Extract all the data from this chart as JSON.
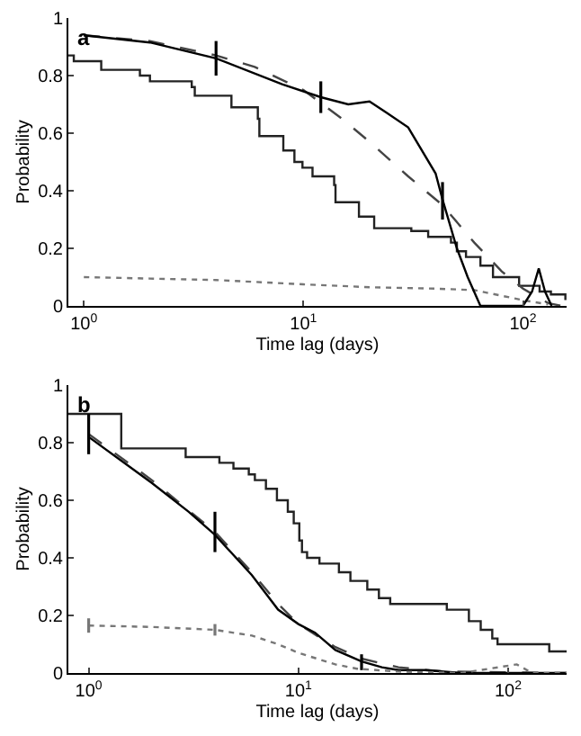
{
  "chart_data": [
    {
      "type": "line",
      "title": "a",
      "xlabel": "Time lag (days)",
      "ylabel": "Probability",
      "log": "x",
      "grid": false,
      "marker": "none",
      "xlim": [
        0.85,
        158
      ],
      "xticks": [
        {
          "value": 1,
          "label": "10$^{0}$"
        },
        {
          "value": 10,
          "label": "10$^{1}$"
        },
        {
          "value": 100,
          "label": "10$^{2}$"
        }
      ],
      "ylim": [
        0,
        1
      ],
      "yticks": [
        0,
        0.2,
        0.4,
        0.6,
        0.8,
        1
      ],
      "series": [
        {
          "type": "step",
          "color": "#222222",
          "line_style": "solid",
          "x": [
            0.85,
            0.9,
            1.2,
            1.8,
            2.0,
            3.1,
            3.2,
            4.7,
            6.2,
            6.3,
            8.1,
            9.1,
            9.9,
            11,
            13.8,
            14,
            17.9,
            21,
            31,
            37,
            47,
            50,
            55,
            64,
            73,
            96,
            119,
            134,
            156
          ],
          "values": [
            0.87,
            0.85,
            0.82,
            0.8,
            0.78,
            0.76,
            0.73,
            0.69,
            0.65,
            0.59,
            0.54,
            0.5,
            0.48,
            0.45,
            0.42,
            0.36,
            0.31,
            0.27,
            0.26,
            0.24,
            0.22,
            0.19,
            0.17,
            0.14,
            0.1,
            0.07,
            0.05,
            0.04,
            0.02
          ]
        },
        {
          "type": "line",
          "color": "#000000",
          "line_style": "solid",
          "x": [
            1,
            2,
            4,
            8,
            12,
            16,
            20,
            24,
            30,
            40,
            43,
            50,
            56,
            64,
            100,
            110,
            118,
            126,
            135
          ],
          "values": [
            0.94,
            0.915,
            0.86,
            0.77,
            0.725,
            0.7,
            0.71,
            0.67,
            0.62,
            0.46,
            0.37,
            0.2,
            0.1,
            0,
            0,
            0.05,
            0.13,
            0.05,
            0
          ],
          "errors": [
            null,
            null,
            [
              0.8,
              0.92
            ],
            null,
            [
              0.67,
              0.78
            ],
            null,
            null,
            null,
            null,
            null,
            [
              0.3,
              0.43
            ],
            null,
            null,
            null,
            null,
            null,
            null,
            null,
            null
          ]
        },
        {
          "type": "line",
          "color": "#444444",
          "line_style": "dashed",
          "x": [
            1,
            2,
            4,
            6,
            10,
            15,
            20,
            30,
            43,
            60,
            80,
            100,
            130,
            150
          ],
          "values": [
            0.94,
            0.92,
            0.87,
            0.83,
            0.75,
            0.65,
            0.57,
            0.45,
            0.35,
            0.22,
            0.12,
            0.06,
            0.01,
            0
          ]
        },
        {
          "type": "line",
          "color": "#777777",
          "line_style": "dotted",
          "x": [
            1,
            2,
            4,
            10,
            20,
            40,
            60,
            100,
            130
          ],
          "values": [
            0.1,
            0.095,
            0.09,
            0.075,
            0.065,
            0.06,
            0.055,
            0.02,
            0.005
          ]
        }
      ]
    },
    {
      "type": "line",
      "title": "b",
      "xlabel": "Time lag (days)",
      "ylabel": "Probability",
      "log": "x",
      "grid": false,
      "marker": "none",
      "xlim": [
        0.8,
        190
      ],
      "xticks": [
        {
          "value": 1,
          "label": "10$^{0}$"
        },
        {
          "value": 10,
          "label": "10$^{1}$"
        },
        {
          "value": 100,
          "label": "10$^{2}$"
        }
      ],
      "ylim": [
        0,
        1
      ],
      "yticks": [
        0,
        0.2,
        0.4,
        0.6,
        0.8,
        1
      ],
      "series": [
        {
          "type": "step",
          "color": "#222222",
          "line_style": "solid",
          "x": [
            0.8,
            1.43,
            2.9,
            4.2,
            4.9,
            5.8,
            6.2,
            7,
            7.9,
            8.9,
            9.5,
            10.1,
            10.4,
            11,
            12.6,
            15.6,
            17.7,
            21.3,
            24.2,
            27.4,
            51,
            65,
            74,
            84,
            89,
            157,
            190
          ],
          "values": [
            0.9,
            0.78,
            0.75,
            0.73,
            0.71,
            0.69,
            0.67,
            0.64,
            0.6,
            0.56,
            0.52,
            0.46,
            0.42,
            0.4,
            0.38,
            0.35,
            0.32,
            0.29,
            0.26,
            0.24,
            0.22,
            0.18,
            0.15,
            0.12,
            0.1,
            0.075,
            0.075
          ]
        },
        {
          "type": "line",
          "color": "#000000",
          "line_style": "solid",
          "x": [
            1,
            2,
            3,
            4,
            6,
            8,
            10,
            12,
            15,
            20,
            25,
            30,
            40,
            60,
            190
          ],
          "values": [
            0.82,
            0.66,
            0.56,
            0.48,
            0.34,
            0.22,
            0.17,
            0.14,
            0.08,
            0.04,
            0.02,
            0.01,
            0.01,
            0,
            0
          ],
          "errors": [
            [
              0.76,
              0.9
            ],
            null,
            null,
            [
              0.42,
              0.56
            ],
            null,
            null,
            null,
            null,
            null,
            [
              0.01,
              0.065
            ],
            null,
            null,
            null,
            null,
            null
          ]
        },
        {
          "type": "line",
          "color": "#444444",
          "line_style": "dashed",
          "x": [
            1,
            2,
            4,
            6,
            8,
            10,
            15,
            20,
            30,
            50,
            190
          ],
          "values": [
            0.83,
            0.67,
            0.49,
            0.35,
            0.24,
            0.17,
            0.09,
            0.05,
            0.02,
            0.005,
            0
          ]
        },
        {
          "type": "line",
          "color": "#777777",
          "line_style": "dotted",
          "x": [
            1,
            2,
            4,
            6,
            8,
            10,
            15,
            19,
            30,
            60,
            110,
            130,
            190
          ],
          "values": [
            0.165,
            0.16,
            0.15,
            0.13,
            0.1,
            0.07,
            0.03,
            0.015,
            0.005,
            0,
            0.03,
            0,
            0
          ],
          "errors": [
            [
              0.14,
              0.19
            ],
            null,
            [
              0.13,
              0.17
            ],
            null,
            null,
            null,
            null,
            null,
            null,
            null,
            null,
            null,
            null
          ]
        }
      ]
    }
  ]
}
